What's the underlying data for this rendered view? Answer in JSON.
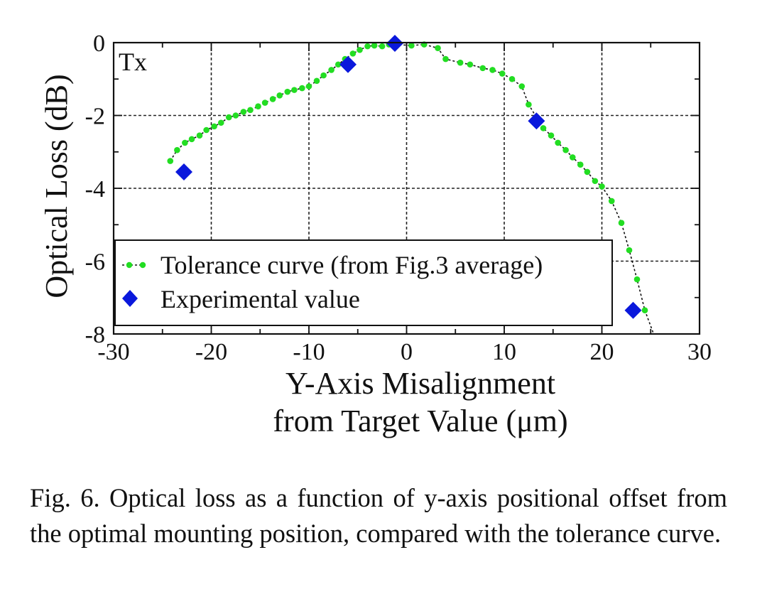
{
  "chart_data": {
    "type": "scatter",
    "panel_label": "Tx",
    "xlabel": [
      "Y-Axis Misalignment",
      "from Target Value (μm)"
    ],
    "ylabel": "Optical Loss (dB)",
    "xlim": [
      -30,
      30
    ],
    "ylim": [
      -8,
      0
    ],
    "xticks": [
      -30,
      -20,
      -10,
      0,
      10,
      20,
      30
    ],
    "xtick_labels": [
      "-30",
      "-20",
      "-10",
      "0",
      "10",
      "20",
      "30"
    ],
    "yticks": [
      0,
      -2,
      -4,
      -6,
      -8
    ],
    "ytick_labels": [
      "0",
      "-2",
      "-4",
      "-6",
      "-8"
    ],
    "grid": true,
    "legend_position": "bottom-left",
    "series": [
      {
        "name": "Tolerance curve (from Fig.3 average)",
        "style": "dotted-line-with-markers",
        "color": "#22dd22",
        "x": [
          -24.2,
          -23.5,
          -22.7,
          -22.0,
          -21.2,
          -20.5,
          -19.7,
          -19.0,
          -18.2,
          -17.5,
          -16.7,
          -16.0,
          -15.2,
          -14.5,
          -13.7,
          -13.0,
          -12.2,
          -11.5,
          -10.7,
          -10.0,
          -9.2,
          -8.5,
          -7.7,
          -7.0,
          -6.3,
          -5.5,
          -4.8,
          -4.0,
          -3.3,
          -2.5,
          -1.8,
          -1.0,
          0.5,
          1.8,
          3.2,
          4.0,
          5.5,
          6.5,
          7.8,
          8.8,
          9.8,
          10.8,
          11.8,
          12.5,
          13.3,
          14.0,
          14.8,
          15.5,
          16.3,
          17.0,
          17.8,
          18.5,
          19.3,
          20.0,
          21.0,
          22.0,
          22.8,
          23.6,
          24.4
        ],
        "y": [
          -3.25,
          -2.95,
          -2.75,
          -2.65,
          -2.55,
          -2.4,
          -2.3,
          -2.2,
          -2.05,
          -2.0,
          -1.9,
          -1.85,
          -1.75,
          -1.65,
          -1.55,
          -1.45,
          -1.35,
          -1.3,
          -1.25,
          -1.2,
          -1.05,
          -0.9,
          -0.75,
          -0.6,
          -0.45,
          -0.3,
          -0.2,
          -0.1,
          -0.08,
          -0.1,
          -0.05,
          -0.05,
          -0.08,
          -0.05,
          -0.15,
          -0.45,
          -0.55,
          -0.6,
          -0.7,
          -0.75,
          -0.85,
          -1.0,
          -1.2,
          -1.7,
          -2.05,
          -2.35,
          -2.55,
          -2.75,
          -2.95,
          -3.15,
          -3.35,
          -3.55,
          -3.8,
          -3.95,
          -4.35,
          -4.95,
          -5.7,
          -6.5,
          -7.35
        ],
        "line_end": {
          "x": 25.3,
          "y": -8
        }
      },
      {
        "name": "Experimental value",
        "style": "marker-only",
        "marker": "diamond",
        "color": "#0a18dc",
        "x": [
          -22.8,
          -6.0,
          -1.2,
          13.3,
          23.2
        ],
        "y": [
          -3.55,
          -0.6,
          -0.02,
          -2.15,
          -7.35
        ]
      }
    ]
  },
  "caption": "Fig. 6. Optical loss as a function of y-axis positional offset from the optimal mounting position, compared with the tolerance curve."
}
